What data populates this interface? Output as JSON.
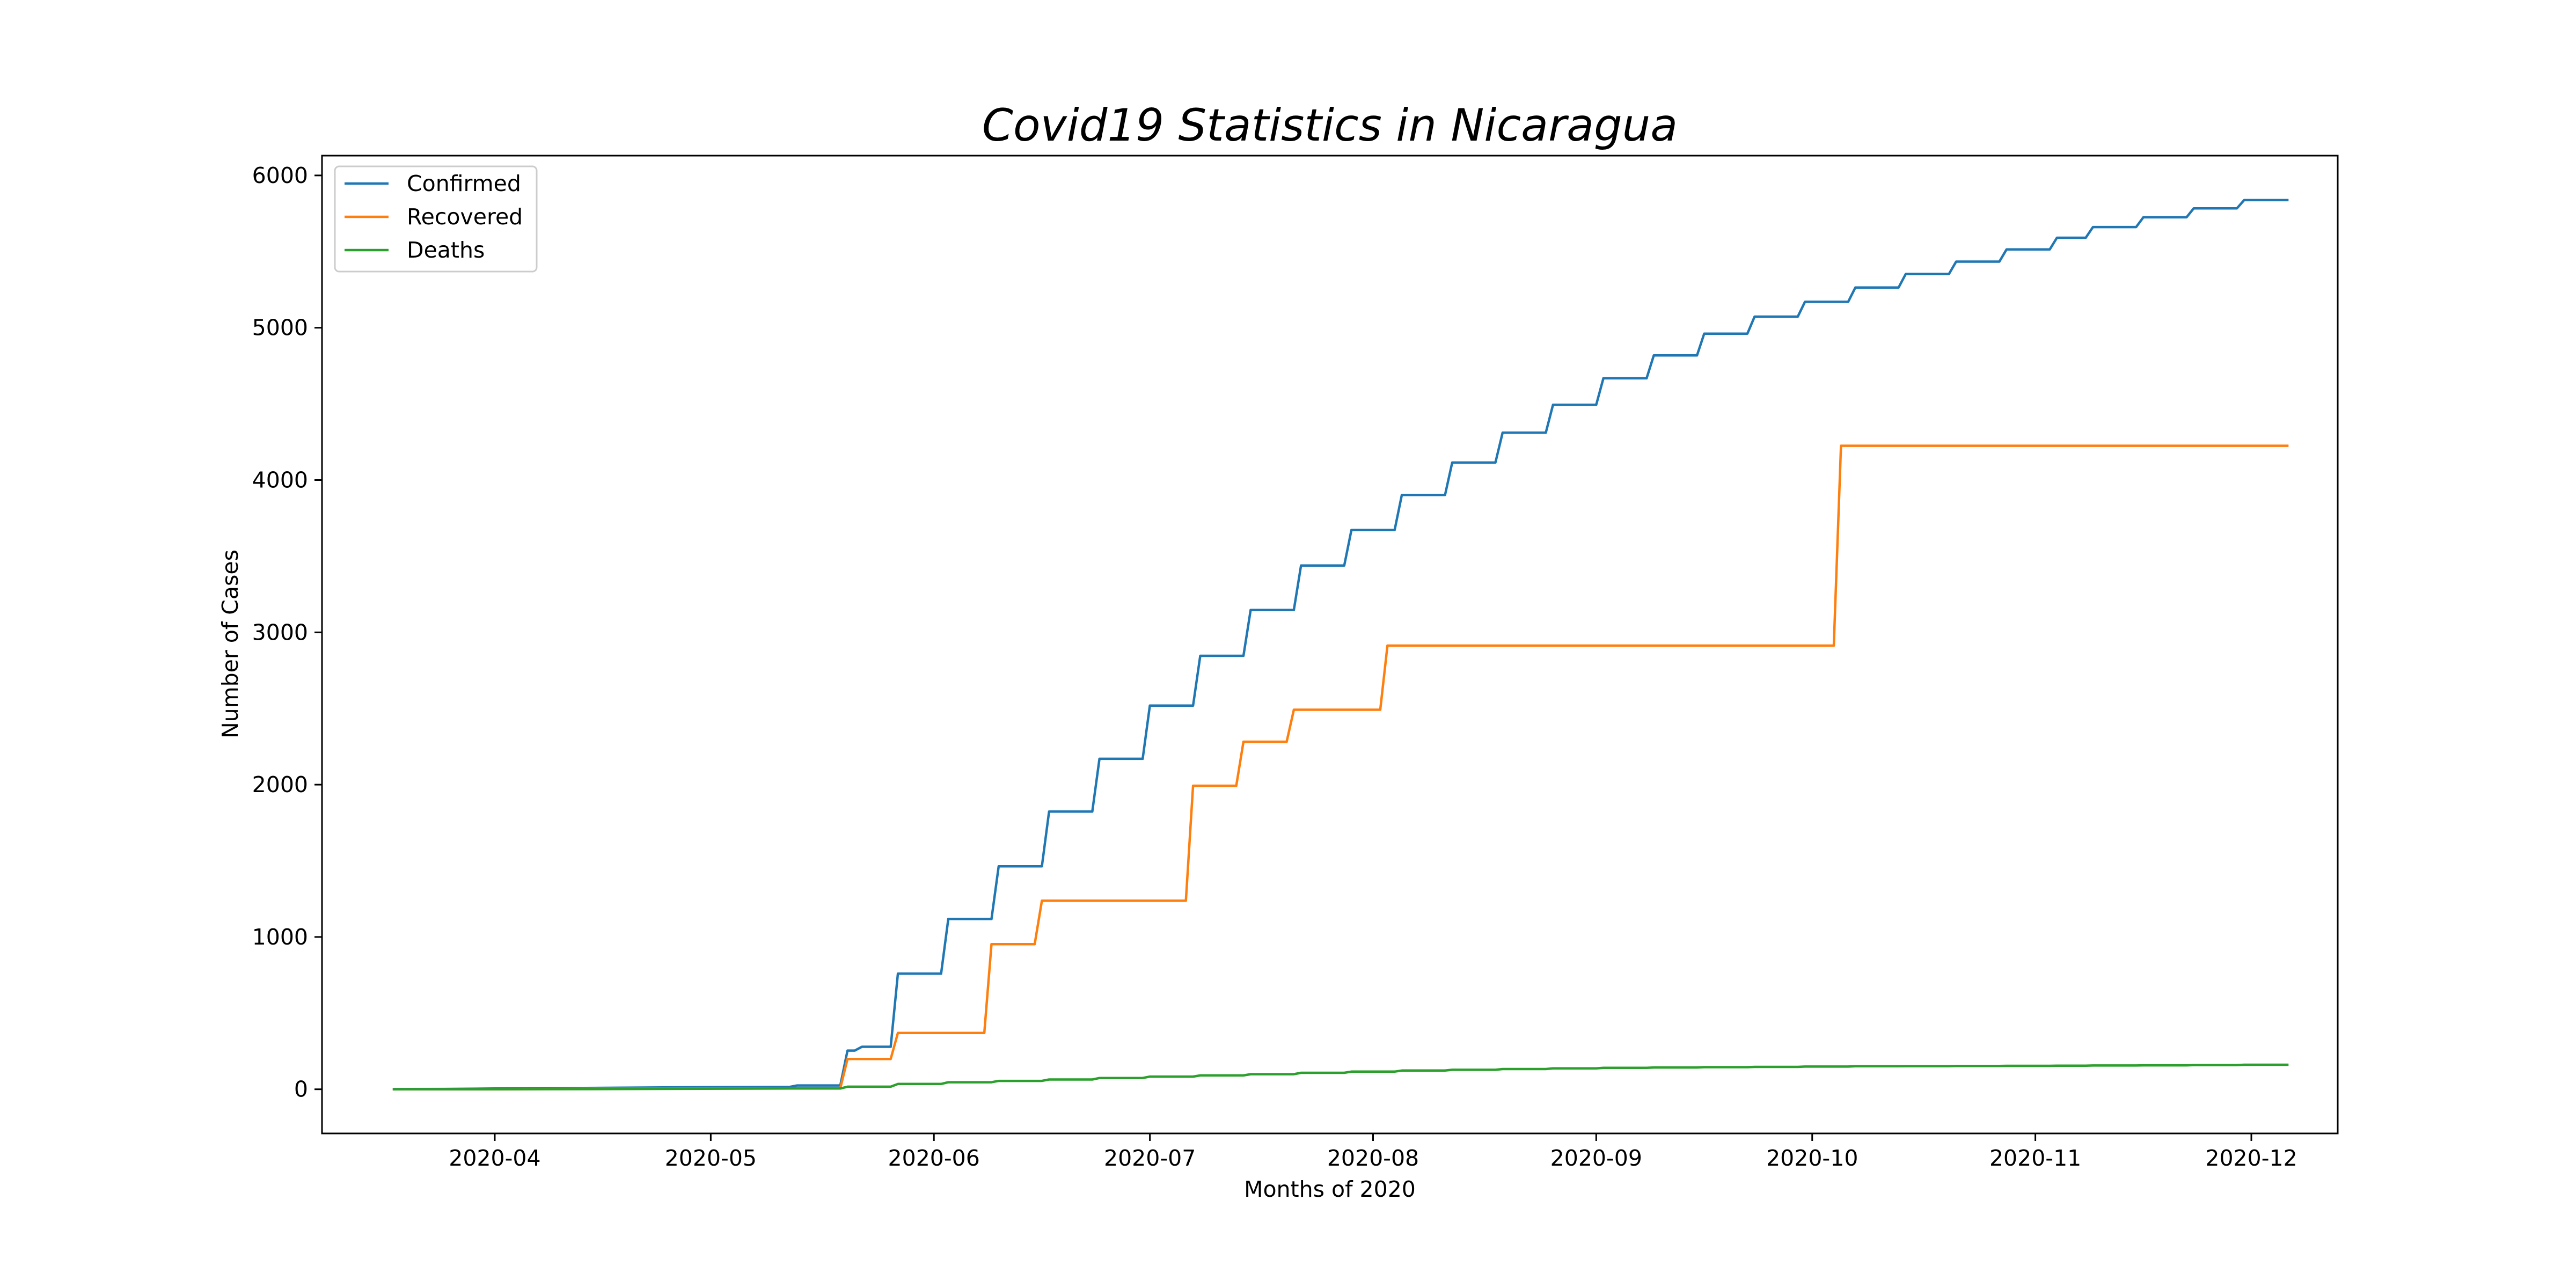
{
  "chart_data": {
    "type": "line",
    "title": "Covid19 Statistics in Nicaragua",
    "xlabel": "Months of 2020",
    "ylabel": "Number of Cases",
    "x_axis": {
      "type": "date",
      "range": [
        "2020-03-08",
        "2020-12-13"
      ],
      "ticks": [
        "2020-04-01",
        "2020-05-01",
        "2020-06-01",
        "2020-07-01",
        "2020-08-01",
        "2020-09-01",
        "2020-10-01",
        "2020-11-01",
        "2020-12-01"
      ],
      "tick_labels": [
        "2020-04",
        "2020-05",
        "2020-06",
        "2020-07",
        "2020-08",
        "2020-09",
        "2020-10",
        "2020-11",
        "2020-12"
      ]
    },
    "y_axis": {
      "range": [
        -290,
        6130
      ],
      "ticks": [
        0,
        1000,
        2000,
        3000,
        4000,
        5000,
        6000
      ],
      "tick_labels": [
        "0",
        "1000",
        "2000",
        "3000",
        "4000",
        "5000",
        "6000"
      ]
    },
    "grid": false,
    "legend_position": "top-left",
    "series": [
      {
        "name": "Confirmed",
        "color": "#1f77b4",
        "points": [
          [
            "2020-03-18",
            1
          ],
          [
            "2020-03-25",
            2
          ],
          [
            "2020-04-01",
            5
          ],
          [
            "2020-04-15",
            9
          ],
          [
            "2020-05-01",
            14
          ],
          [
            "2020-05-12",
            16
          ],
          [
            "2020-05-13",
            25
          ],
          [
            "2020-05-19",
            25
          ],
          [
            "2020-05-20",
            254
          ],
          [
            "2020-05-21",
            254
          ],
          [
            "2020-05-22",
            279
          ],
          [
            "2020-05-26",
            279
          ],
          [
            "2020-05-27",
            759
          ],
          [
            "2020-06-02",
            759
          ],
          [
            "2020-06-03",
            1118
          ],
          [
            "2020-06-09",
            1118
          ],
          [
            "2020-06-10",
            1464
          ],
          [
            "2020-06-16",
            1464
          ],
          [
            "2020-06-17",
            1823
          ],
          [
            "2020-06-23",
            1823
          ],
          [
            "2020-06-24",
            2170
          ],
          [
            "2020-06-30",
            2170
          ],
          [
            "2020-07-01",
            2519
          ],
          [
            "2020-07-07",
            2519
          ],
          [
            "2020-07-08",
            2846
          ],
          [
            "2020-07-14",
            2846
          ],
          [
            "2020-07-15",
            3147
          ],
          [
            "2020-07-21",
            3147
          ],
          [
            "2020-07-22",
            3439
          ],
          [
            "2020-07-28",
            3439
          ],
          [
            "2020-07-29",
            3672
          ],
          [
            "2020-08-04",
            3672
          ],
          [
            "2020-08-05",
            3902
          ],
          [
            "2020-08-11",
            3902
          ],
          [
            "2020-08-12",
            4115
          ],
          [
            "2020-08-18",
            4115
          ],
          [
            "2020-08-19",
            4311
          ],
          [
            "2020-08-25",
            4311
          ],
          [
            "2020-08-26",
            4494
          ],
          [
            "2020-09-01",
            4494
          ],
          [
            "2020-09-02",
            4668
          ],
          [
            "2020-09-08",
            4668
          ],
          [
            "2020-09-09",
            4818
          ],
          [
            "2020-09-15",
            4818
          ],
          [
            "2020-09-16",
            4961
          ],
          [
            "2020-09-22",
            4961
          ],
          [
            "2020-09-23",
            5073
          ],
          [
            "2020-09-29",
            5073
          ],
          [
            "2020-09-30",
            5170
          ],
          [
            "2020-10-06",
            5170
          ],
          [
            "2020-10-07",
            5264
          ],
          [
            "2020-10-13",
            5264
          ],
          [
            "2020-10-14",
            5353
          ],
          [
            "2020-10-20",
            5353
          ],
          [
            "2020-10-21",
            5434
          ],
          [
            "2020-10-27",
            5434
          ],
          [
            "2020-10-28",
            5514
          ],
          [
            "2020-11-03",
            5514
          ],
          [
            "2020-11-04",
            5591
          ],
          [
            "2020-11-08",
            5591
          ],
          [
            "2020-11-09",
            5661
          ],
          [
            "2020-11-15",
            5661
          ],
          [
            "2020-11-16",
            5725
          ],
          [
            "2020-11-22",
            5725
          ],
          [
            "2020-11-23",
            5784
          ],
          [
            "2020-11-29",
            5784
          ],
          [
            "2020-11-30",
            5838
          ],
          [
            "2020-12-06",
            5838
          ]
        ]
      },
      {
        "name": "Recovered",
        "color": "#ff7f0e",
        "points": [
          [
            "2020-03-18",
            0
          ],
          [
            "2020-04-01",
            0
          ],
          [
            "2020-04-15",
            3
          ],
          [
            "2020-05-19",
            7
          ],
          [
            "2020-05-20",
            199
          ],
          [
            "2020-05-26",
            199
          ],
          [
            "2020-05-27",
            370
          ],
          [
            "2020-06-08",
            370
          ],
          [
            "2020-06-09",
            953
          ],
          [
            "2020-06-15",
            953
          ],
          [
            "2020-06-16",
            1238
          ],
          [
            "2020-07-06",
            1238
          ],
          [
            "2020-07-07",
            1993
          ],
          [
            "2020-07-13",
            1993
          ],
          [
            "2020-07-14",
            2282
          ],
          [
            "2020-07-20",
            2282
          ],
          [
            "2020-07-21",
            2492
          ],
          [
            "2020-08-02",
            2492
          ],
          [
            "2020-08-03",
            2913
          ],
          [
            "2020-10-04",
            2913
          ],
          [
            "2020-10-05",
            4225
          ],
          [
            "2020-12-06",
            4225
          ]
        ]
      },
      {
        "name": "Deaths",
        "color": "#2ca02c",
        "points": [
          [
            "2020-03-18",
            0
          ],
          [
            "2020-04-15",
            1
          ],
          [
            "2020-05-12",
            5
          ],
          [
            "2020-05-19",
            5
          ],
          [
            "2020-05-20",
            17
          ],
          [
            "2020-05-26",
            17
          ],
          [
            "2020-05-27",
            35
          ],
          [
            "2020-06-02",
            35
          ],
          [
            "2020-06-03",
            46
          ],
          [
            "2020-06-09",
            46
          ],
          [
            "2020-06-10",
            55
          ],
          [
            "2020-06-16",
            55
          ],
          [
            "2020-06-17",
            64
          ],
          [
            "2020-06-23",
            64
          ],
          [
            "2020-06-24",
            74
          ],
          [
            "2020-06-30",
            74
          ],
          [
            "2020-07-01",
            83
          ],
          [
            "2020-07-07",
            83
          ],
          [
            "2020-07-08",
            91
          ],
          [
            "2020-07-14",
            91
          ],
          [
            "2020-07-15",
            99
          ],
          [
            "2020-07-21",
            99
          ],
          [
            "2020-07-22",
            108
          ],
          [
            "2020-07-28",
            108
          ],
          [
            "2020-07-29",
            116
          ],
          [
            "2020-08-04",
            116
          ],
          [
            "2020-08-05",
            123
          ],
          [
            "2020-08-11",
            123
          ],
          [
            "2020-08-12",
            128
          ],
          [
            "2020-08-18",
            128
          ],
          [
            "2020-08-19",
            133
          ],
          [
            "2020-08-25",
            133
          ],
          [
            "2020-08-26",
            137
          ],
          [
            "2020-09-01",
            137
          ],
          [
            "2020-09-02",
            141
          ],
          [
            "2020-09-08",
            141
          ],
          [
            "2020-09-09",
            143
          ],
          [
            "2020-09-15",
            143
          ],
          [
            "2020-09-16",
            145
          ],
          [
            "2020-09-22",
            145
          ],
          [
            "2020-09-23",
            147
          ],
          [
            "2020-09-29",
            147
          ],
          [
            "2020-09-30",
            149
          ],
          [
            "2020-10-06",
            149
          ],
          [
            "2020-10-07",
            151
          ],
          [
            "2020-10-13",
            151
          ],
          [
            "2020-10-14",
            152
          ],
          [
            "2020-10-20",
            152
          ],
          [
            "2020-10-21",
            153
          ],
          [
            "2020-10-27",
            153
          ],
          [
            "2020-10-28",
            154
          ],
          [
            "2020-11-03",
            154
          ],
          [
            "2020-11-04",
            155
          ],
          [
            "2020-11-08",
            155
          ],
          [
            "2020-11-09",
            156
          ],
          [
            "2020-11-15",
            156
          ],
          [
            "2020-11-16",
            157
          ],
          [
            "2020-11-22",
            157
          ],
          [
            "2020-11-23",
            159
          ],
          [
            "2020-11-29",
            159
          ],
          [
            "2020-11-30",
            161
          ],
          [
            "2020-12-06",
            161
          ]
        ]
      }
    ]
  }
}
